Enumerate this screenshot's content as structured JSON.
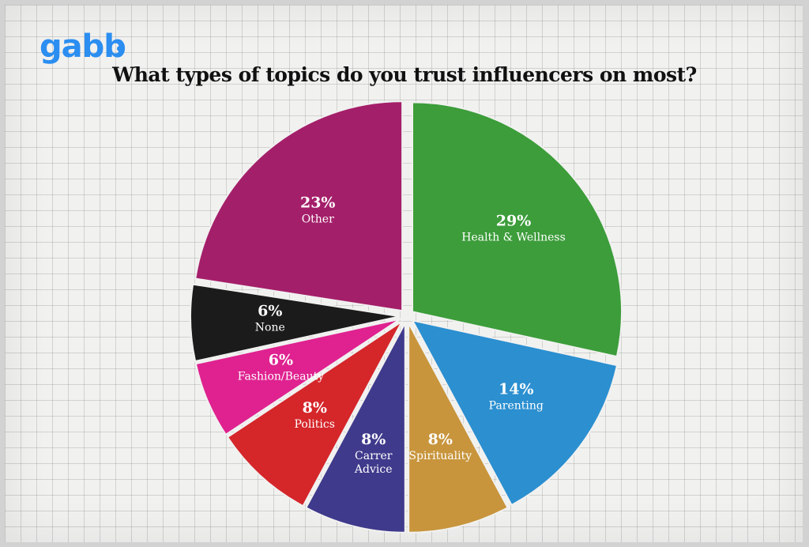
{
  "brand": {
    "logo_text": "gabb"
  },
  "chart_data": {
    "type": "pie",
    "title": "What types of topics do you trust influencers on most?",
    "unit": "%",
    "slices": [
      {
        "label": "Health & Wellness",
        "value": 29,
        "value_text": "29%",
        "color": "#3c9d3a"
      },
      {
        "label": "Parenting",
        "value": 14,
        "value_text": "14%",
        "color": "#2b8fd0"
      },
      {
        "label": "Spirituality",
        "value": 8,
        "value_text": "8%",
        "color": "#c8953c"
      },
      {
        "label": "Carrer\nAdvice",
        "value": 8,
        "value_text": "8%",
        "color": "#3f3a8c"
      },
      {
        "label": "Politics",
        "value": 8,
        "value_text": "8%",
        "color": "#d5262a"
      },
      {
        "label": "Fashion/Beauty",
        "value": 6,
        "value_text": "6%",
        "color": "#df2290"
      },
      {
        "label": "None",
        "value": 6,
        "value_text": "6%",
        "color": "#1b1b1b"
      },
      {
        "label": "Other",
        "value": 23,
        "value_text": "23%",
        "color": "#a41f6a"
      }
    ],
    "start_position": "12 o'clock",
    "direction": "clockwise",
    "exploded": true,
    "legend": "none"
  }
}
